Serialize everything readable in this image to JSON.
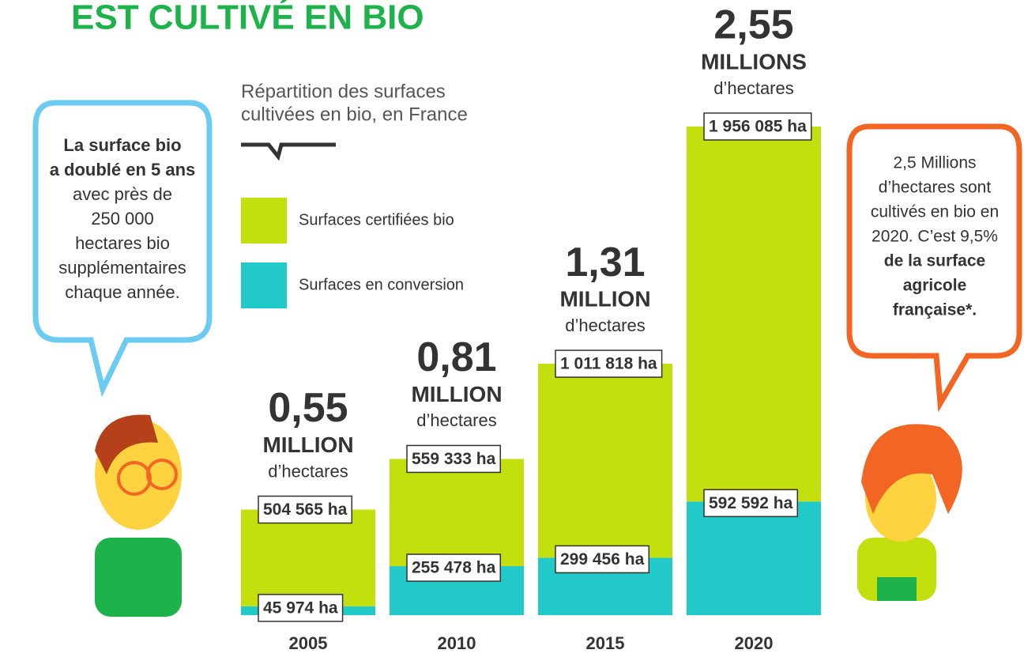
{
  "chart_data": {
    "type": "stacked_bar",
    "title": "EST CULTIVÉ EN BIO",
    "subtitle": [
      "Répartition des surfaces",
      "cultivées en bio, en France"
    ],
    "categories": [
      "2005",
      "2010",
      "2015",
      "2020"
    ],
    "series": [
      {
        "name": "Surfaces en conversion",
        "color": "#22c9c9",
        "values": [
          45974,
          255478,
          299456,
          592592
        ],
        "value_labels": [
          "45 974 ha",
          "255 478 ha",
          "299 456 ha",
          "592 592 ha"
        ]
      },
      {
        "name": "Surfaces certifiées bio",
        "color": "#c3df0e",
        "values": [
          504565,
          559333,
          1011818,
          1956085
        ],
        "value_labels": [
          "504 565 ha",
          "559 333 ha",
          "1 011 818 ha",
          "1 956 085 ha"
        ]
      }
    ],
    "annotations": [
      [
        "0,55",
        "MILLION",
        "d’hectares"
      ],
      [
        "0,81",
        "MILLION",
        "d’hectares"
      ],
      [
        "1,31",
        "MILLION",
        "d’hectares"
      ],
      [
        "2,55",
        "MILLIONS",
        "d’hectares"
      ]
    ],
    "bubble_left": [
      "La surface bio",
      "a doublé en 5 ans",
      "avec près de",
      "250 000",
      "hectares bio",
      "supplémentaires",
      "chaque année."
    ],
    "bubble_right": [
      "2,5 Millions",
      "d’hectares sont",
      "cultivés en bio en",
      "2020. C’est 9,5%",
      "de la surface",
      "agricole",
      "française*."
    ]
  }
}
